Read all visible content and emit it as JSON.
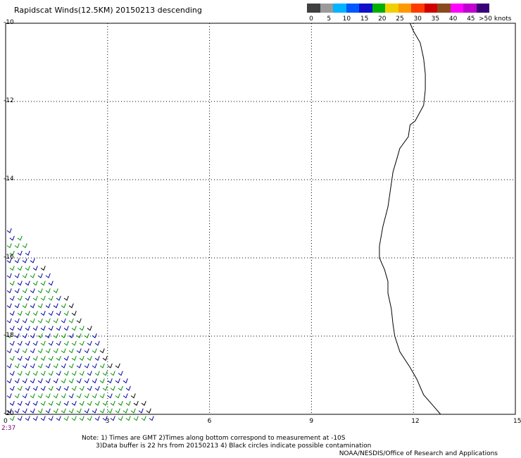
{
  "title": "Rapidscat Winds(12.5KM) 20150213 descending",
  "colorbar": {
    "colors": [
      "#404040",
      "#9a9a9a",
      "#00b4ff",
      "#0058ff",
      "#1010c8",
      "#00b000",
      "#f0d000",
      "#ff9900",
      "#ff3c00",
      "#d00000",
      "#8a4a20",
      "#ff00ff",
      "#c000d0",
      "#3a0078"
    ],
    "labels": [
      "0",
      "5",
      "10",
      "15",
      "20",
      "25",
      "30",
      "35",
      "40",
      "45",
      ">50 knots"
    ]
  },
  "axes": {
    "y_ticks": [
      "-10",
      "-12",
      "-14",
      "-16",
      "-18",
      "-20"
    ],
    "x_ticks": [
      "0",
      "3",
      "6",
      "9",
      "12",
      "15"
    ],
    "lat_range": [
      -20,
      -10
    ],
    "lon_range": [
      0,
      15
    ]
  },
  "time_label": "2:37",
  "notes": "Note: 1) Times are GMT 2)Times along bottom correspond to measurement at -10S\n       3)Data buffer is 22 hrs from 20150213 4) Black circles indicate possible contamination",
  "credit": "NOAA/NESDIS/Office of Research and Applications",
  "coastline": [
    [
      11.9,
      -10
    ],
    [
      12.0,
      -10.2
    ],
    [
      12.2,
      -10.5
    ],
    [
      12.3,
      -10.9
    ],
    [
      12.35,
      -11.3
    ],
    [
      12.35,
      -11.7
    ],
    [
      12.3,
      -12.1
    ],
    [
      12.05,
      -12.5
    ],
    [
      11.9,
      -12.6
    ],
    [
      11.85,
      -12.9
    ],
    [
      11.6,
      -13.2
    ],
    [
      11.5,
      -13.5
    ],
    [
      11.4,
      -13.8
    ],
    [
      11.35,
      -14.1
    ],
    [
      11.3,
      -14.4
    ],
    [
      11.25,
      -14.7
    ],
    [
      11.1,
      -15.2
    ],
    [
      11.0,
      -15.7
    ],
    [
      11.0,
      -16.0
    ],
    [
      11.15,
      -16.3
    ],
    [
      11.25,
      -16.6
    ],
    [
      11.25,
      -16.9
    ],
    [
      11.35,
      -17.3
    ],
    [
      11.4,
      -17.7
    ],
    [
      11.45,
      -18.0
    ],
    [
      11.6,
      -18.4
    ],
    [
      11.9,
      -18.8
    ],
    [
      12.1,
      -19.1
    ],
    [
      12.3,
      -19.5
    ],
    [
      12.6,
      -19.8
    ],
    [
      12.8,
      -20.0
    ]
  ],
  "wind_field": {
    "speed_colors": {
      "low": "#0000a0",
      "mid": "#009000",
      "high": "#000000"
    },
    "rows": 26,
    "lat_start": -15.3,
    "lat_end": -20.1,
    "lon_min": 0.0,
    "lon_max_start": 0.25,
    "lon_max_end": 4.4
  }
}
